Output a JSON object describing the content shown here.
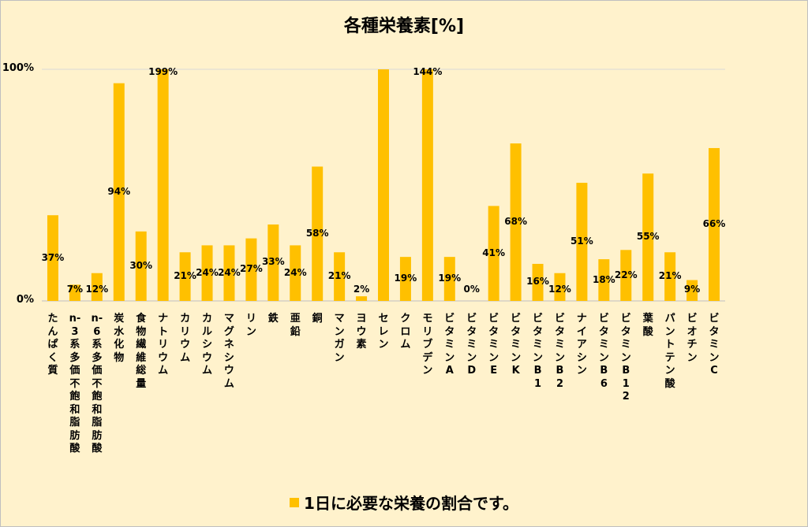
{
  "chart_data": {
    "type": "bar",
    "title": "各種栄養素[%]",
    "y_ticks": [
      "0%",
      "100%"
    ],
    "ylim": [
      0,
      100
    ],
    "categories": [
      "たんぱく質",
      "n-3系多価不飽和脂肪酸",
      "n-6系多価不飽和脂肪酸",
      "炭水化物",
      "食物繊維総量",
      "ナトリウム",
      "カリウム",
      "カルシウム",
      "マグネシウム",
      "リン",
      "鉄",
      "亜 鉛",
      "銅",
      "マンガン",
      "ヨウ素",
      "セレン",
      "クロム",
      "モリブデン",
      "ビタミンA",
      "ビタミンD",
      "ビタミンE",
      "ビタミンK",
      "ビタミンB1",
      "ビタミンB2",
      "ナイアシン",
      "ビタミンB6",
      "ビタミンB12",
      "葉 酸",
      "パントテン酸",
      "ビオチン",
      "ビタミンC"
    ],
    "values": [
      37,
      7,
      12,
      94,
      30,
      199,
      21,
      24,
      24,
      27,
      33,
      24,
      58,
      21,
      2,
      100,
      19,
      144,
      19,
      0,
      41,
      68,
      16,
      12,
      51,
      18,
      22,
      55,
      21,
      9,
      66
    ],
    "data_labels": [
      "37%",
      "7%",
      "12%",
      "94%",
      "30%",
      "199%",
      "21%",
      "24%",
      "24%",
      "27%",
      "33%",
      "24%",
      "58%",
      "21%",
      "2%",
      "",
      "19%",
      "144%",
      "19%",
      "0%",
      "41%",
      "68%",
      "16%",
      "12%",
      "51%",
      "18%",
      "22%",
      "55%",
      "21%",
      "9%",
      "66%"
    ],
    "bar_color": "#ffc000",
    "grid": true,
    "legend": {
      "position": "bottom",
      "label": "1日に必要な栄養の割合です。"
    }
  }
}
